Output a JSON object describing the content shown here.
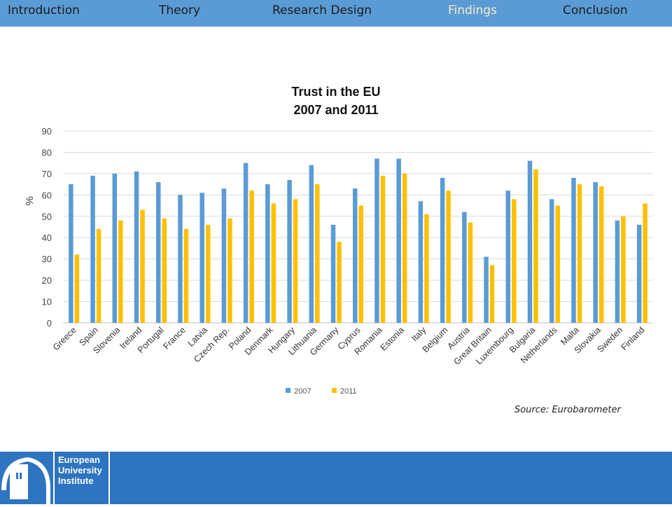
{
  "nav": {
    "items": [
      {
        "label": "Introduction",
        "active": false
      },
      {
        "label": "Theory",
        "active": false
      },
      {
        "label": "Research  Design",
        "active": false
      },
      {
        "label": "Findings",
        "active": true
      },
      {
        "label": "Conclusion",
        "active": false
      }
    ],
    "bar_color": "#5b9bd5",
    "active_color": "#f5ecc4"
  },
  "chart_data": {
    "type": "bar",
    "title": "Trust in the EU\n2007 and 2011",
    "ylabel": "%",
    "xlabel": "",
    "ylim": [
      0,
      90
    ],
    "yticks": [
      0,
      10,
      20,
      30,
      40,
      50,
      60,
      70,
      80,
      90
    ],
    "grid": true,
    "legend": "bottom",
    "categories": [
      "Greece",
      "Spain",
      "Slovenia",
      "Ireland",
      "Portugal",
      "France",
      "Latvia",
      "Czech  Rep.",
      "Poland",
      "Denmark",
      "Hungary",
      "Lithuania",
      "Germany",
      "Cyprus",
      "Romania",
      "Estonia",
      "Italy",
      "Belgium",
      "Austria",
      "Great Britain",
      "Luxembourg",
      "Bulgaria",
      "Netherlands",
      "Malta",
      "Slovakia",
      "Sweden",
      "Finland"
    ],
    "series": [
      {
        "name": "2007",
        "color": "#5b9bd5",
        "values": [
          65,
          69,
          70,
          71,
          66,
          60,
          61,
          63,
          75,
          65,
          67,
          74,
          46,
          63,
          77,
          77,
          57,
          68,
          52,
          31,
          62,
          76,
          58,
          68,
          66,
          48,
          46
        ]
      },
      {
        "name": "2011",
        "color": "#ffc000",
        "values": [
          32,
          44,
          48,
          53,
          49,
          44,
          46,
          49,
          62,
          56,
          58,
          65,
          38,
          55,
          69,
          70,
          51,
          62,
          47,
          27,
          58,
          72,
          55,
          65,
          64,
          50,
          56
        ]
      }
    ]
  },
  "source_text": "Source: Eurobarometer",
  "logo": {
    "lines": [
      "European",
      "University",
      "Institute"
    ],
    "color": "#2e74c1"
  }
}
